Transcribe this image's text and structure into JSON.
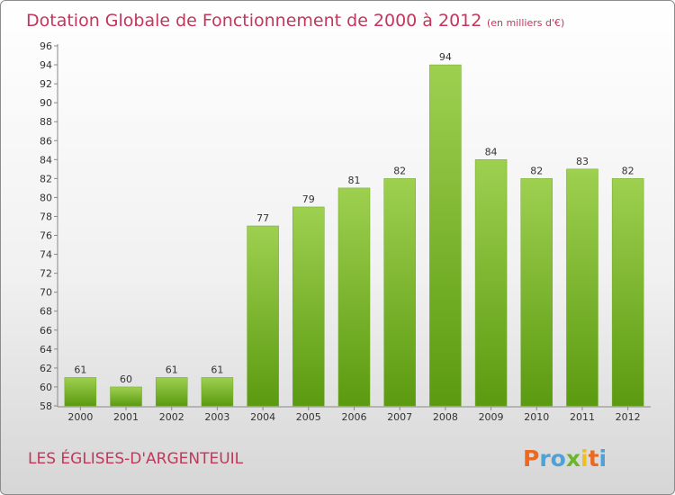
{
  "chart_data": {
    "type": "bar",
    "title": "Dotation Globale de Fonctionnement de 2000 à 2012",
    "subtitle": "(en milliers d'€)",
    "categories": [
      "2000",
      "2001",
      "2002",
      "2003",
      "2004",
      "2005",
      "2006",
      "2007",
      "2008",
      "2009",
      "2010",
      "2011",
      "2012"
    ],
    "values": [
      61,
      60,
      61,
      61,
      77,
      79,
      81,
      82,
      94,
      84,
      82,
      83,
      82
    ],
    "ylim": [
      58,
      96
    ],
    "ytick_step": 2,
    "grid": false,
    "bar_color_top": "#9ed050",
    "bar_color_bottom": "#5b9a10"
  },
  "footer": {
    "place": "LES ÉGLISES-D'ARGENTEUIL",
    "logo": {
      "text": "Proxiti",
      "colors": [
        "#ec6a20",
        "#4ea2d8",
        "#4ea2d8",
        "#6bb62a",
        "#f0c018",
        "#ec6a20",
        "#4ea2d8"
      ]
    }
  }
}
